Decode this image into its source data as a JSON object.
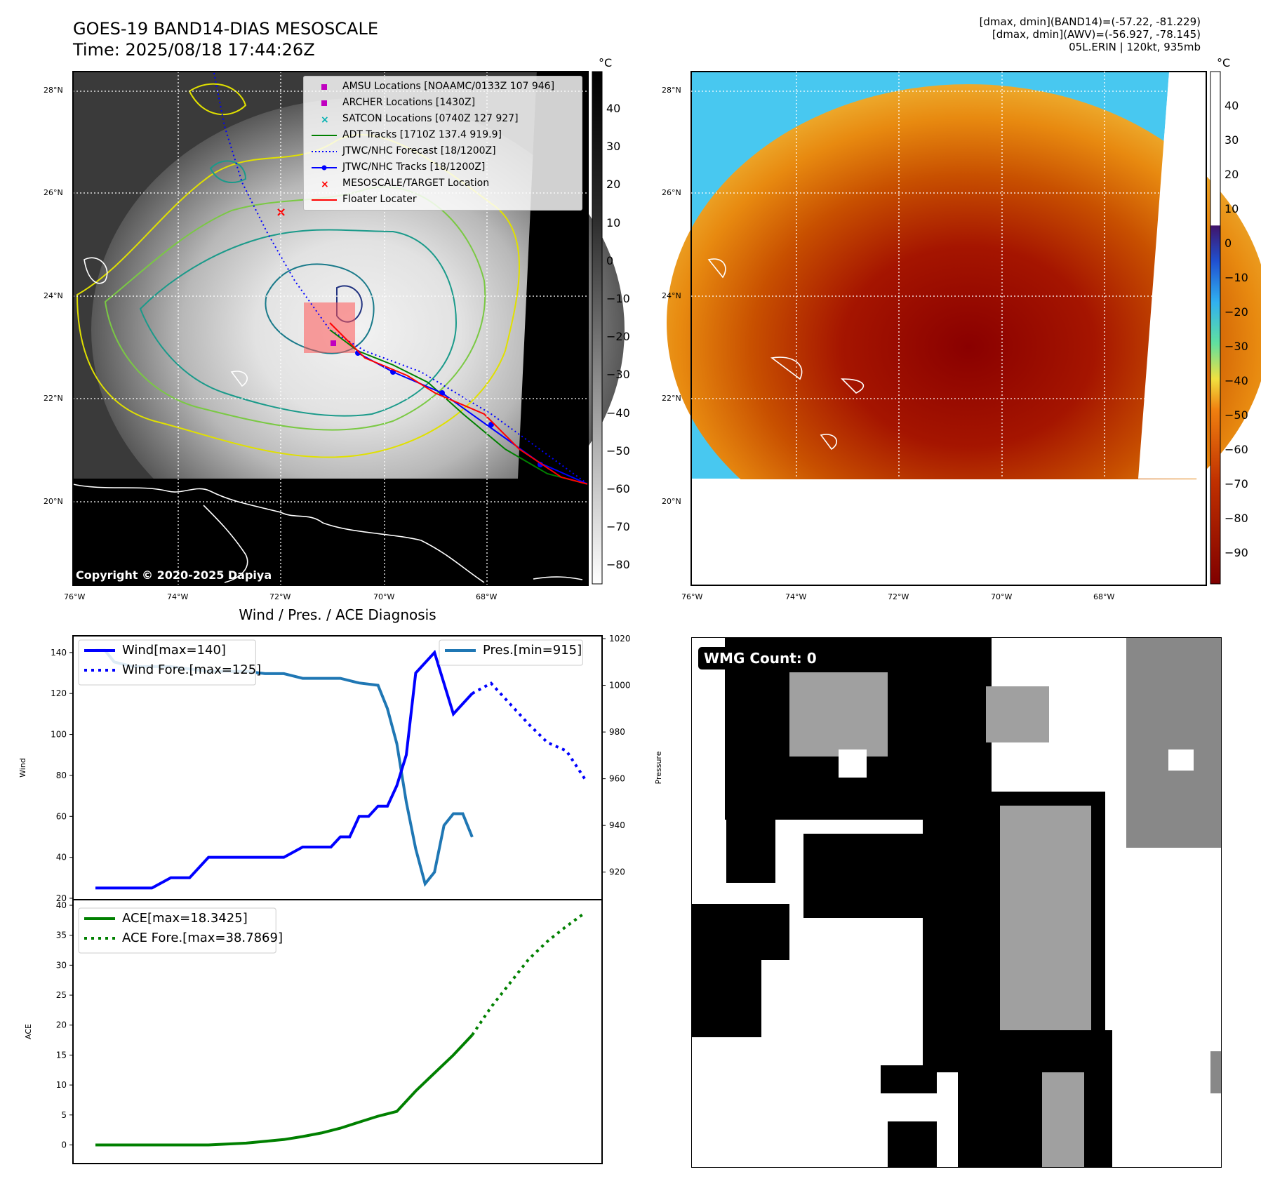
{
  "header": {
    "title_line1": "GOES-19 BAND14-DIAS MESOSCALE",
    "title_line2": "Time: 2025/08/18 17:44:26Z",
    "stats_line1": "[dmax, dmin](BAND14)=(-57.22, -81.229)",
    "stats_line2": "[dmax, dmin](AWV)=(-56.927, -78.145)",
    "stats_line3": "05L.ERIN | 120kt, 935mb"
  },
  "map_left": {
    "copyright": "Copyright © 2020-2025 Dapiya",
    "lat_labels": [
      "28°N",
      "26°N",
      "24°N",
      "22°N",
      "20°N"
    ],
    "lon_labels": [
      "76°W",
      "74°W",
      "72°W",
      "70°W",
      "68°W"
    ],
    "legend": [
      {
        "label": "AMSU Locations [NOAAMC/0133Z 107 946]",
        "color": "#c000c0",
        "marker": "square"
      },
      {
        "label": "ARCHER Locations [1430Z]",
        "color": "#c000c0",
        "marker": "square"
      },
      {
        "label": "SATCON Locations [0740Z 127 927]",
        "color": "#00b0b0",
        "marker": "x"
      },
      {
        "label": "ADT Tracks [1710Z 137.4 919.9]",
        "color": "#008000",
        "marker": "line"
      },
      {
        "label": "JTWC/NHC Forecast [18/1200Z]",
        "color": "#0000ff",
        "marker": "dotted"
      },
      {
        "label": "JTWC/NHC Tracks [18/1200Z]",
        "color": "#0000ff",
        "marker": "line-dot"
      },
      {
        "label": "MESOSCALE/TARGET Location",
        "color": "#ff0000",
        "marker": "x"
      },
      {
        "label": "Floater Locater",
        "color": "#ff0000",
        "marker": "line"
      }
    ],
    "colorbar": {
      "unit": "°C",
      "ticks": [
        "40",
        "30",
        "20",
        "10",
        "0",
        "−10",
        "−20",
        "−30",
        "−40",
        "−50",
        "−60",
        "−70",
        "−80"
      ]
    }
  },
  "map_right": {
    "lat_labels": [
      "28°N",
      "26°N",
      "24°N",
      "22°N",
      "20°N"
    ],
    "lon_labels": [
      "76°W",
      "74°W",
      "72°W",
      "70°W",
      "68°W"
    ],
    "colorbar": {
      "unit": "°C",
      "ticks": [
        "40",
        "30",
        "20",
        "10",
        "0",
        "−10",
        "−20",
        "−30",
        "−40",
        "−50",
        "−60",
        "−70",
        "−80",
        "−90"
      ]
    }
  },
  "wmg": {
    "label": "WMG Count: 0"
  },
  "chart_data": [
    {
      "type": "line",
      "title": "Wind / Pres. / ACE Diagnosis",
      "ylabel": "Wind",
      "ylabel_right": "Pressure",
      "ylim": [
        20,
        142
      ],
      "ylim_right": [
        910,
        1020
      ],
      "xlim": [
        0,
        26
      ],
      "yticks": [
        "20",
        "40",
        "60",
        "80",
        "100",
        "120",
        "140"
      ],
      "yticks_right": [
        "920",
        "940",
        "960",
        "980",
        "1000",
        "1020"
      ],
      "series": [
        {
          "name": "Wind[max=140]",
          "axis": "left",
          "style": "solid",
          "color": "#0000ff",
          "x": [
            0,
            1,
            2,
            3,
            4,
            5,
            6,
            7,
            8,
            9,
            10,
            11,
            11.5,
            12,
            12.5,
            13,
            13.5,
            14,
            14.5,
            15,
            15.5,
            16,
            16.5,
            17,
            18,
            19,
            20
          ],
          "y": [
            25,
            25,
            25,
            25,
            30,
            30,
            40,
            40,
            40,
            40,
            40,
            45,
            45,
            45,
            45,
            50,
            50,
            60,
            60,
            65,
            65,
            75,
            90,
            130,
            140,
            110,
            120
          ]
        },
        {
          "name": "Wind Fore.[max=125]",
          "axis": "left",
          "style": "dotted",
          "color": "#0000ff",
          "x": [
            20,
            21,
            22,
            23,
            24,
            25,
            26
          ],
          "y": [
            120,
            125,
            115,
            105,
            96,
            92,
            78
          ]
        },
        {
          "name": "Pres.[min=915]",
          "axis": "right",
          "style": "solid",
          "color": "#1f77b4",
          "x": [
            0,
            0.5,
            1,
            2,
            3,
            4,
            5,
            6,
            7,
            8,
            9,
            10,
            11,
            12,
            13,
            14,
            15,
            15.5,
            16,
            16.5,
            17,
            17.5,
            18,
            18.5,
            19,
            19.5,
            20
          ],
          "y": [
            1015,
            1015,
            1010,
            1008,
            1008,
            1008,
            1007,
            1006,
            1006,
            1006,
            1005,
            1005,
            1003,
            1003,
            1003,
            1001,
            1000,
            990,
            975,
            950,
            930,
            915,
            920,
            940,
            945,
            945,
            935
          ]
        }
      ]
    },
    {
      "type": "line",
      "ylabel": "ACE",
      "ylim": [
        -1,
        40
      ],
      "xlim": [
        0,
        26
      ],
      "yticks": [
        "0",
        "5",
        "10",
        "15",
        "20",
        "25",
        "30",
        "35",
        "40"
      ],
      "series": [
        {
          "name": "ACE[max=18.3425]",
          "style": "solid",
          "color": "#008000",
          "x": [
            0,
            2,
            4,
            6,
            8,
            10,
            11,
            12,
            13,
            14,
            15,
            16,
            17,
            18,
            19,
            20
          ],
          "y": [
            0,
            0,
            0,
            0,
            0.3,
            0.9,
            1.4,
            2.0,
            2.8,
            3.8,
            4.8,
            5.6,
            9.0,
            12.0,
            15.0,
            18.3425
          ]
        },
        {
          "name": "ACE Fore.[max=38.7869]",
          "style": "dotted",
          "color": "#008000",
          "x": [
            20,
            21,
            22,
            23,
            24,
            25,
            26
          ],
          "y": [
            18.3425,
            23,
            27,
            31,
            34,
            36.5,
            38.7869
          ]
        }
      ]
    }
  ]
}
